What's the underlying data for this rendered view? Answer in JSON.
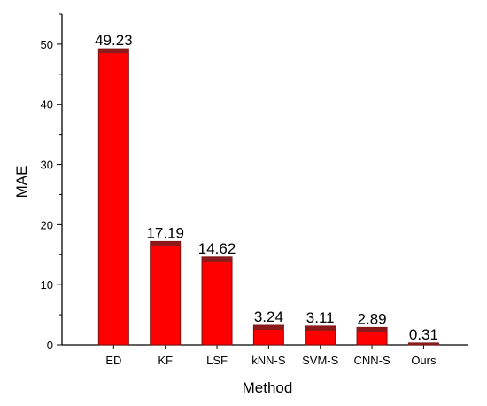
{
  "chart_data": {
    "type": "bar",
    "xlabel": "Method",
    "ylabel": "MAE",
    "categories": [
      "ED",
      "KF",
      "LSF",
      "kNN-S",
      "SVM-S",
      "CNN-S",
      "Ours"
    ],
    "values": [
      49.23,
      17.19,
      14.62,
      3.24,
      3.11,
      2.89,
      0.31
    ],
    "data_labels": [
      "49.23",
      "17.19",
      "14.62",
      "3.24",
      "3.11",
      "2.89",
      "0.31"
    ],
    "ylim": [
      0,
      55
    ],
    "yticks": [
      0,
      10,
      20,
      30,
      40,
      50
    ],
    "grid": false,
    "legend": "none",
    "colors": {
      "bar_fill": "#ff0000",
      "bar_top": "#8b1a1a",
      "bar_stroke": "#7a1010",
      "axis": "#000000"
    }
  }
}
